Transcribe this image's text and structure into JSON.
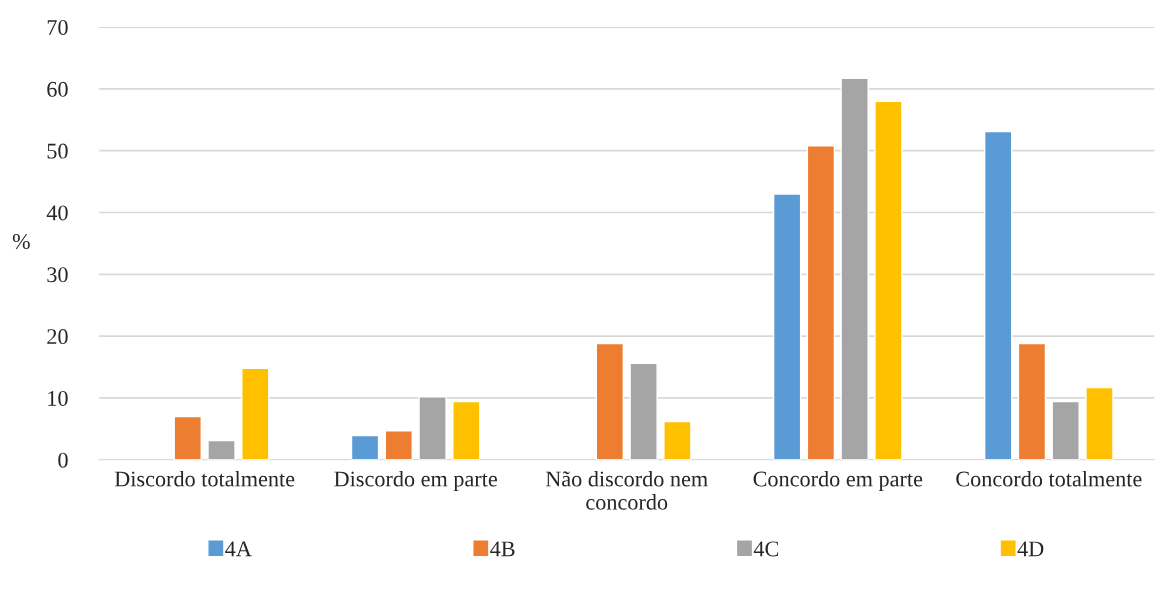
{
  "chart_data": {
    "type": "bar",
    "ylabel": "%",
    "categories": [
      "Discordo totalmente",
      "Discordo em parte",
      "Não discordo nem\nconcordo",
      "Concordo em parte",
      "Concordo totalmente"
    ],
    "series": [
      {
        "name": "4A",
        "color": "#5b9bd5",
        "values": [
          null,
          3.9,
          null,
          43.0,
          53.1
        ]
      },
      {
        "name": "4B",
        "color": "#ed7d31",
        "values": [
          7.0,
          4.7,
          18.8,
          50.8,
          18.8
        ]
      },
      {
        "name": "4C",
        "color": "#a5a5a5",
        "values": [
          3.1,
          10.2,
          15.6,
          61.7,
          9.4
        ]
      },
      {
        "name": "4D",
        "color": "#ffc000",
        "values": [
          14.8,
          9.4,
          6.2,
          58.0,
          11.7
        ]
      }
    ],
    "ylim": [
      0,
      70
    ],
    "yticks": [
      0,
      10,
      20,
      30,
      40,
      50,
      60,
      70
    ],
    "grid": "y",
    "legend": "bottom"
  }
}
